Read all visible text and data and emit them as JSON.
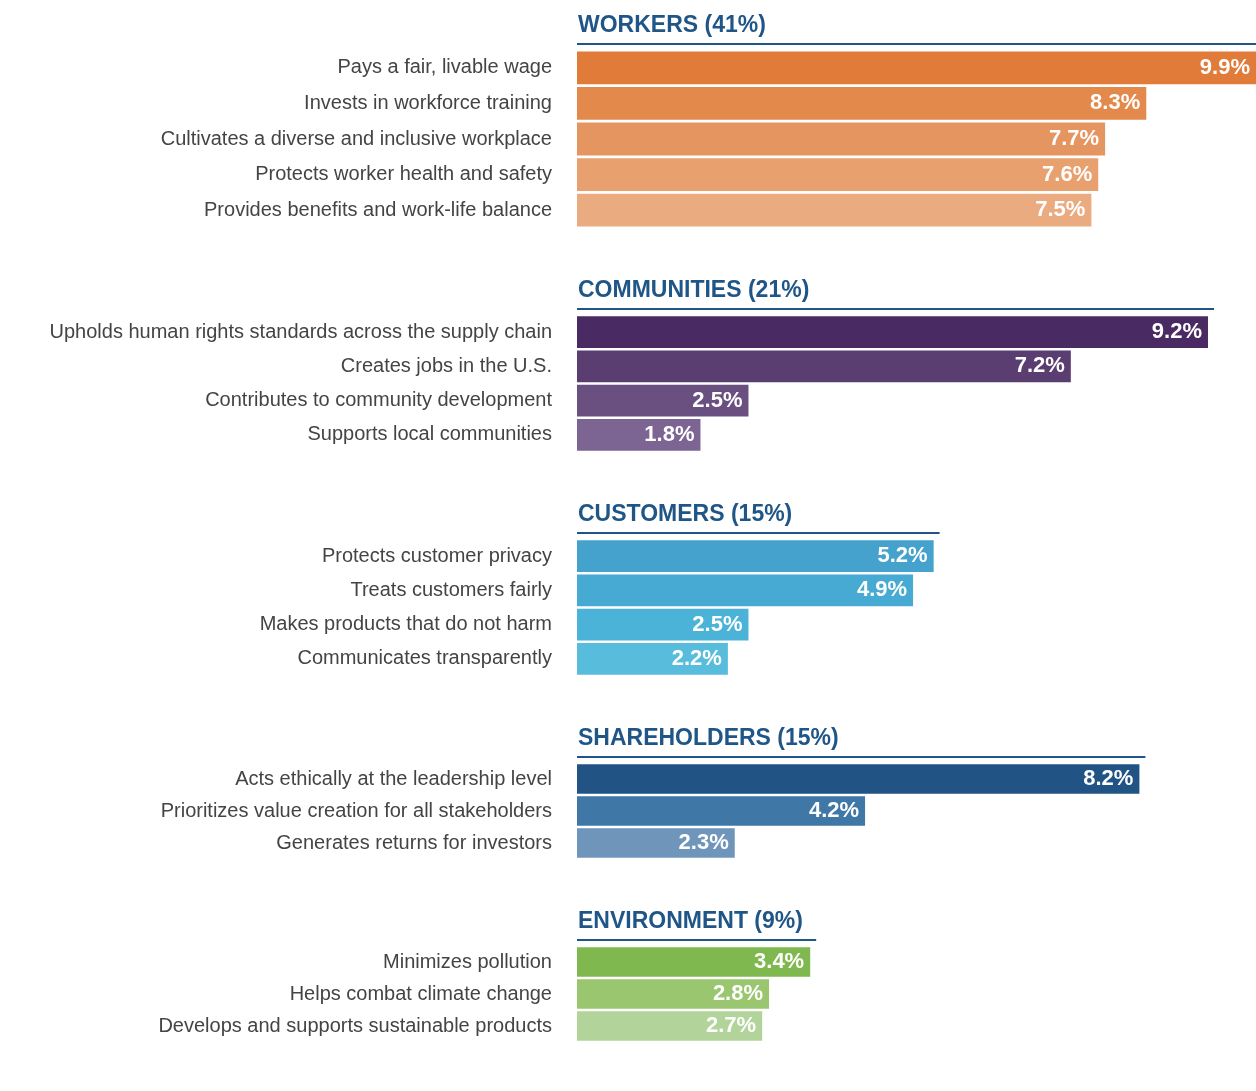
{
  "chart_data": [
    {
      "type": "bar",
      "orientation": "horizontal",
      "title": "WORKERS (41%)",
      "categories": [
        "Pays a fair, livable wage",
        "Invests in workforce training",
        "Cultivates a diverse and inclusive workplace",
        "Protects worker health and safety",
        "Provides benefits and work-life balance"
      ],
      "values": [
        9.9,
        8.3,
        7.7,
        7.6,
        7.5
      ],
      "value_labels": [
        "9.9%",
        "8.3%",
        "7.7%",
        "7.6%",
        "7.5%"
      ],
      "colors": [
        "#e07b39",
        "#e3894c",
        "#e5955f",
        "#e8a06f",
        "#eaab80"
      ],
      "tick_labels": "y",
      "legend": false
    },
    {
      "type": "bar",
      "orientation": "horizontal",
      "title": "COMMUNITIES (21%)",
      "categories": [
        "Upholds human rights standards across the supply chain",
        "Creates jobs in the U.S.",
        "Contributes to community development",
        "Supports local communities"
      ],
      "values": [
        9.2,
        7.2,
        2.5,
        1.8
      ],
      "value_labels": [
        "9.2%",
        "7.2%",
        "2.5%",
        "1.8%"
      ],
      "colors": [
        "#4a2a62",
        "#5a3d71",
        "#6a5081",
        "#7c6592"
      ],
      "tick_labels": "y",
      "legend": false
    },
    {
      "type": "bar",
      "orientation": "horizontal",
      "title": "CUSTOMERS (15%)",
      "categories": [
        "Protects customer privacy",
        "Treats customers fairly",
        "Makes products that do not harm",
        "Communicates transparently"
      ],
      "values": [
        5.2,
        4.9,
        2.5,
        2.2
      ],
      "value_labels": [
        "5.2%",
        "4.9%",
        "2.5%",
        "2.2%"
      ],
      "colors": [
        "#44a2cc",
        "#47aad2",
        "#4bb3d8",
        "#58bcdc"
      ],
      "tick_labels": "y",
      "legend": false
    },
    {
      "type": "bar",
      "orientation": "horizontal",
      "title": "SHAREHOLDERS (15%)",
      "categories": [
        "Acts ethically at the leadership level",
        "Prioritizes value creation for all stakeholders",
        "Generates returns for investors"
      ],
      "values": [
        8.2,
        4.2,
        2.3
      ],
      "value_labels": [
        "8.2%",
        "4.2%",
        "2.3%"
      ],
      "colors": [
        "#215484",
        "#3f78a6",
        "#6f96ba"
      ],
      "tick_labels": "y",
      "legend": false
    },
    {
      "type": "bar",
      "orientation": "horizontal",
      "title": "ENVIRONMENT (9%)",
      "categories": [
        "Minimizes pollution",
        "Helps combat climate change",
        "Develops and supports sustainable products"
      ],
      "values": [
        3.4,
        2.8,
        2.7
      ],
      "value_labels": [
        "3.4%",
        "2.8%",
        "2.7%"
      ],
      "colors": [
        "#7fb84e",
        "#9ac66f",
        "#b2d49a"
      ],
      "tick_labels": "y",
      "legend": false
    }
  ]
}
